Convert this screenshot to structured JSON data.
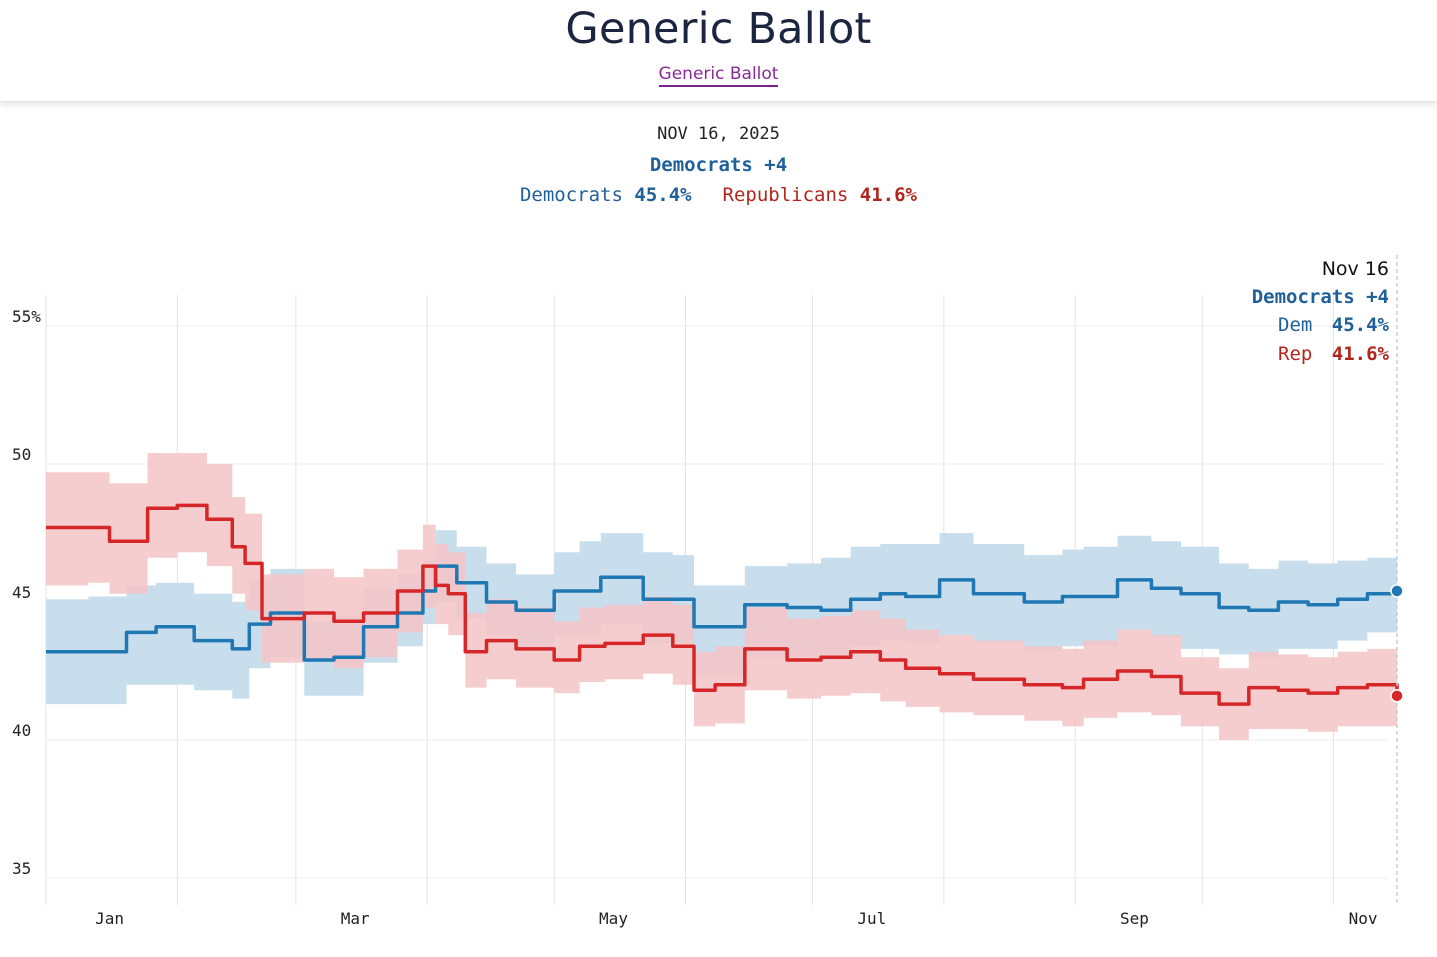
{
  "page": {
    "title": "Generic Ballot",
    "link_label": "Generic Ballot"
  },
  "summary": {
    "date": "NOV 16, 2025",
    "leader": "Democrats +4",
    "dem_label": "Democrats",
    "dem_value": "45.4%",
    "rep_label": "Republicans",
    "rep_value": "41.6%"
  },
  "tooltip": {
    "date": "Nov 16",
    "leader": "Democrats +4",
    "dem_label": "Dem",
    "dem_value": "45.4%",
    "rep_label": "Rep",
    "rep_value": "41.6%"
  },
  "colors": {
    "dem": "#1f77b4",
    "dem_band": "#c6dcec",
    "rep": "#d62728",
    "rep_band": "#f4c4c5",
    "dem_text": "#1f5f9a",
    "rep_text": "#b3261e"
  },
  "chart_data": {
    "type": "line",
    "title": "Generic Ballot",
    "xlabel": "",
    "ylabel": "",
    "x_range": [
      "2025-01-01",
      "2025-11-16"
    ],
    "ylim": [
      34,
      56
    ],
    "y_ticks": [
      55,
      50,
      45,
      40,
      35
    ],
    "y_tick_labels": [
      "55%",
      "50",
      "45",
      "40",
      "35"
    ],
    "x_tick_labels": [
      "Jan",
      "Mar",
      "May",
      "Jul",
      "Sep",
      "Nov"
    ],
    "grid": true,
    "series": [
      {
        "name": "Dem",
        "color": "#1f77b4",
        "x": [
          "2025-01-01",
          "2025-01-11",
          "2025-01-20",
          "2025-01-27",
          "2025-02-05",
          "2025-02-14",
          "2025-02-18",
          "2025-02-23",
          "2025-03-03",
          "2025-03-10",
          "2025-03-17",
          "2025-03-25",
          "2025-03-31",
          "2025-04-03",
          "2025-04-08",
          "2025-04-15",
          "2025-04-22",
          "2025-05-01",
          "2025-05-07",
          "2025-05-12",
          "2025-05-22",
          "2025-05-29",
          "2025-06-03",
          "2025-06-15",
          "2025-06-25",
          "2025-07-03",
          "2025-07-10",
          "2025-07-17",
          "2025-07-23",
          "2025-07-31",
          "2025-08-08",
          "2025-08-20",
          "2025-08-29",
          "2025-09-03",
          "2025-09-11",
          "2025-09-19",
          "2025-09-26",
          "2025-10-05",
          "2025-10-12",
          "2025-10-19",
          "2025-10-26",
          "2025-11-02",
          "2025-11-09",
          "2025-11-16"
        ],
        "y": [
          43.2,
          43.2,
          43.9,
          44.1,
          43.6,
          43.3,
          44.2,
          44.6,
          42.9,
          43.0,
          44.1,
          44.6,
          45.4,
          46.3,
          45.7,
          45.0,
          44.7,
          45.4,
          45.4,
          45.9,
          45.1,
          45.1,
          44.1,
          44.9,
          44.8,
          44.7,
          45.1,
          45.3,
          45.2,
          45.8,
          45.3,
          45.0,
          45.2,
          45.2,
          45.8,
          45.5,
          45.3,
          44.8,
          44.7,
          45.0,
          44.9,
          45.1,
          45.3,
          45.4
        ],
        "band_low": [
          41.3,
          41.3,
          42.0,
          42.0,
          41.8,
          41.5,
          42.6,
          43.0,
          41.6,
          41.6,
          42.8,
          43.4,
          44.2,
          45.0,
          44.4,
          43.8,
          43.3,
          43.8,
          43.8,
          44.2,
          43.5,
          43.5,
          42.3,
          43.0,
          43.0,
          43.1,
          43.4,
          43.6,
          43.5,
          43.8,
          43.5,
          43.2,
          43.4,
          43.4,
          44.0,
          43.7,
          43.3,
          43.1,
          43.0,
          43.3,
          43.3,
          43.6,
          43.9,
          44.0
        ],
        "band_high": [
          45.1,
          45.2,
          45.6,
          45.7,
          45.3,
          45.0,
          45.8,
          46.2,
          44.3,
          44.5,
          45.5,
          46.0,
          46.5,
          47.6,
          47.0,
          46.4,
          46.0,
          46.8,
          47.2,
          47.5,
          46.8,
          46.7,
          45.6,
          46.3,
          46.4,
          46.6,
          47.0,
          47.1,
          47.1,
          47.5,
          47.1,
          46.7,
          46.9,
          47.0,
          47.4,
          47.2,
          47.0,
          46.4,
          46.2,
          46.5,
          46.4,
          46.5,
          46.6,
          46.6
        ]
      },
      {
        "name": "Rep",
        "color": "#d62728",
        "x": [
          "2025-01-01",
          "2025-01-11",
          "2025-01-16",
          "2025-01-25",
          "2025-02-01",
          "2025-02-08",
          "2025-02-14",
          "2025-02-17",
          "2025-02-21",
          "2025-03-03",
          "2025-03-10",
          "2025-03-17",
          "2025-03-25",
          "2025-03-31",
          "2025-04-03",
          "2025-04-06",
          "2025-04-10",
          "2025-04-15",
          "2025-04-22",
          "2025-05-01",
          "2025-05-07",
          "2025-05-13",
          "2025-05-22",
          "2025-05-29",
          "2025-06-03",
          "2025-06-08",
          "2025-06-15",
          "2025-06-25",
          "2025-07-03",
          "2025-07-10",
          "2025-07-17",
          "2025-07-23",
          "2025-07-31",
          "2025-08-08",
          "2025-08-20",
          "2025-08-29",
          "2025-09-03",
          "2025-09-11",
          "2025-09-19",
          "2025-09-26",
          "2025-10-05",
          "2025-10-12",
          "2025-10-19",
          "2025-10-26",
          "2025-11-02",
          "2025-11-09",
          "2025-11-16"
        ],
        "y": [
          47.7,
          47.7,
          47.2,
          48.4,
          48.5,
          48.0,
          47.0,
          46.4,
          44.4,
          44.6,
          44.3,
          44.6,
          45.4,
          46.3,
          45.6,
          45.3,
          43.2,
          43.6,
          43.3,
          42.9,
          43.4,
          43.5,
          43.8,
          43.4,
          41.8,
          42.0,
          43.3,
          42.9,
          43.0,
          43.2,
          42.9,
          42.6,
          42.4,
          42.2,
          42.0,
          41.9,
          42.2,
          42.5,
          42.3,
          41.7,
          41.3,
          41.9,
          41.8,
          41.7,
          41.9,
          42.0,
          41.6
        ],
        "band_low": [
          45.6,
          45.7,
          45.3,
          46.6,
          46.8,
          46.3,
          45.3,
          44.7,
          42.8,
          42.9,
          42.6,
          43.0,
          43.9,
          44.8,
          44.2,
          43.8,
          41.9,
          42.2,
          41.9,
          41.7,
          42.1,
          42.2,
          42.4,
          42.0,
          40.5,
          40.6,
          41.8,
          41.5,
          41.6,
          41.7,
          41.4,
          41.2,
          41.0,
          40.9,
          40.7,
          40.5,
          40.8,
          41.0,
          40.9,
          40.5,
          40.0,
          40.4,
          40.4,
          40.3,
          40.5,
          40.5,
          40.4
        ],
        "band_high": [
          49.7,
          49.7,
          49.3,
          50.4,
          50.4,
          50.0,
          48.8,
          48.2,
          46.0,
          46.2,
          45.9,
          46.2,
          46.9,
          47.8,
          47.1,
          46.8,
          44.6,
          45.1,
          44.8,
          44.3,
          44.8,
          44.9,
          45.2,
          44.9,
          43.2,
          43.4,
          44.8,
          44.4,
          44.5,
          44.7,
          44.4,
          44.0,
          43.8,
          43.6,
          43.4,
          43.3,
          43.6,
          44.0,
          43.8,
          43.0,
          42.6,
          43.2,
          43.1,
          43.0,
          43.2,
          43.3,
          42.9
        ]
      }
    ],
    "annotations": [
      "Nov 16"
    ]
  }
}
